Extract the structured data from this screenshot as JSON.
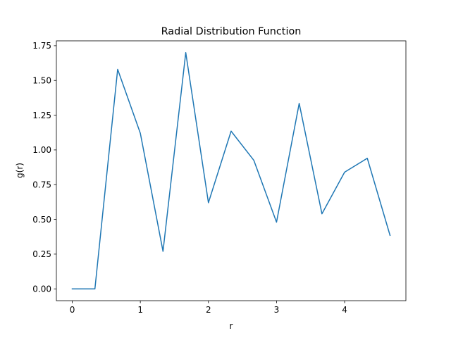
{
  "chart_data": {
    "type": "line",
    "title": "Radial Distribution Function",
    "xlabel": "r",
    "ylabel": "g(r)",
    "xlim": [
      -0.233,
      4.9
    ],
    "ylim": [
      -0.085,
      1.785
    ],
    "x_ticks": [
      0,
      1,
      2,
      3,
      4
    ],
    "x_tick_labels": [
      "0",
      "1",
      "2",
      "3",
      "4"
    ],
    "y_ticks": [
      0.0,
      0.25,
      0.5,
      0.75,
      1.0,
      1.25,
      1.5,
      1.75
    ],
    "y_tick_labels": [
      "0.00",
      "0.25",
      "0.50",
      "0.75",
      "1.00",
      "1.25",
      "1.50",
      "1.75"
    ],
    "grid": false,
    "series": [
      {
        "color": "#1f77b4",
        "x": [
          0,
          0.333,
          0.667,
          1.0,
          1.333,
          1.667,
          2.0,
          2.333,
          2.667,
          3.0,
          3.333,
          3.667,
          4.0,
          4.333,
          4.667
        ],
        "y": [
          0.0,
          0.0,
          1.58,
          1.12,
          0.27,
          1.7,
          0.62,
          1.135,
          0.925,
          0.48,
          1.335,
          0.54,
          0.84,
          0.94,
          0.385
        ]
      }
    ]
  }
}
